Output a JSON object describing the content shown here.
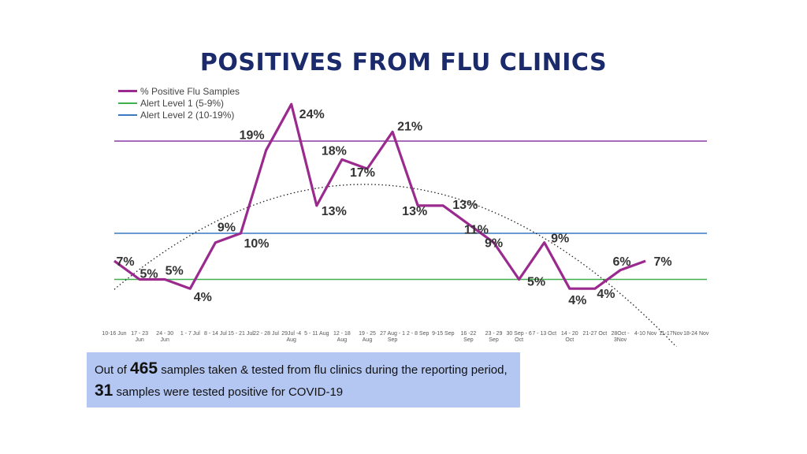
{
  "title": "POSITIVES FROM FLU CLINICS",
  "legend": [
    {
      "label": "% Positive Flu Samples",
      "color": "#9b2a8f"
    },
    {
      "label": "Alert Level 1 (5-9%)",
      "color": "#3fb04e"
    },
    {
      "label": "Alert Level 2 (10-19%)",
      "color": "#3a78c3"
    }
  ],
  "chart_data": {
    "type": "line",
    "categories": [
      [
        "10-16 Jun"
      ],
      [
        "17 - 23",
        "Jun"
      ],
      [
        "24 - 30",
        "Jun"
      ],
      [
        "1 - 7 Jul"
      ],
      [
        "8 - 14 Jul"
      ],
      [
        "15 - 21 Jul"
      ],
      [
        "22 - 28 Jul"
      ],
      [
        "29Jul -4",
        "Aug"
      ],
      [
        "5 - 11 Aug"
      ],
      [
        "12 - 18",
        "Aug"
      ],
      [
        "19 - 25",
        "Aug"
      ],
      [
        "27 Aug - 1",
        "Sep"
      ],
      [
        "2 - 8 Sep"
      ],
      [
        "9-15 Sep"
      ],
      [
        "16 -22",
        "Sep"
      ],
      [
        "23 - 29",
        "Sep"
      ],
      [
        "30 Sep - 6",
        "Oct"
      ],
      [
        "7 - 13 Oct"
      ],
      [
        "14 - 20",
        "Oct"
      ],
      [
        "21-27 Oct"
      ],
      [
        "28Oct -",
        "3Nov"
      ],
      [
        "4-10 Nov"
      ],
      [
        "11-17Nov"
      ],
      [
        "18-24 Nov"
      ]
    ],
    "series": [
      {
        "name": "% Positive Flu Samples",
        "color": "#9b2a8f",
        "values": [
          7,
          5,
          5,
          4,
          9,
          10,
          19,
          24,
          13,
          18,
          17,
          21,
          13,
          13,
          11,
          9,
          5,
          9,
          4,
          4,
          6,
          7,
          null,
          null
        ]
      }
    ],
    "data_labels": [
      "7%",
      "5%",
      "5%",
      "4%",
      "9%",
      "10%",
      "19%",
      "24%",
      "13%",
      "18%",
      "17%",
      "21%",
      "13%",
      "13%",
      "11%",
      "9%",
      "5%",
      "9%",
      "4%",
      "4%",
      "6%",
      "7%"
    ],
    "reference_lines": [
      {
        "value": 20,
        "color": "#8a3aa5"
      },
      {
        "value": 10,
        "color": "#3a78c3"
      },
      {
        "value": 5,
        "color": "#3fb04e"
      }
    ],
    "trendline": {
      "type": "polynomial",
      "style": "dotted"
    },
    "ylim": [
      0,
      25
    ],
    "title": "POSITIVES FROM FLU CLINICS",
    "xlabel": "",
    "ylabel": ""
  },
  "note": {
    "prefix": "Out of ",
    "total": "465",
    "middle": " samples taken & tested from flu clinics during the reporting period, ",
    "positive": "31",
    "suffix": " samples were tested positive for COVID-19"
  }
}
